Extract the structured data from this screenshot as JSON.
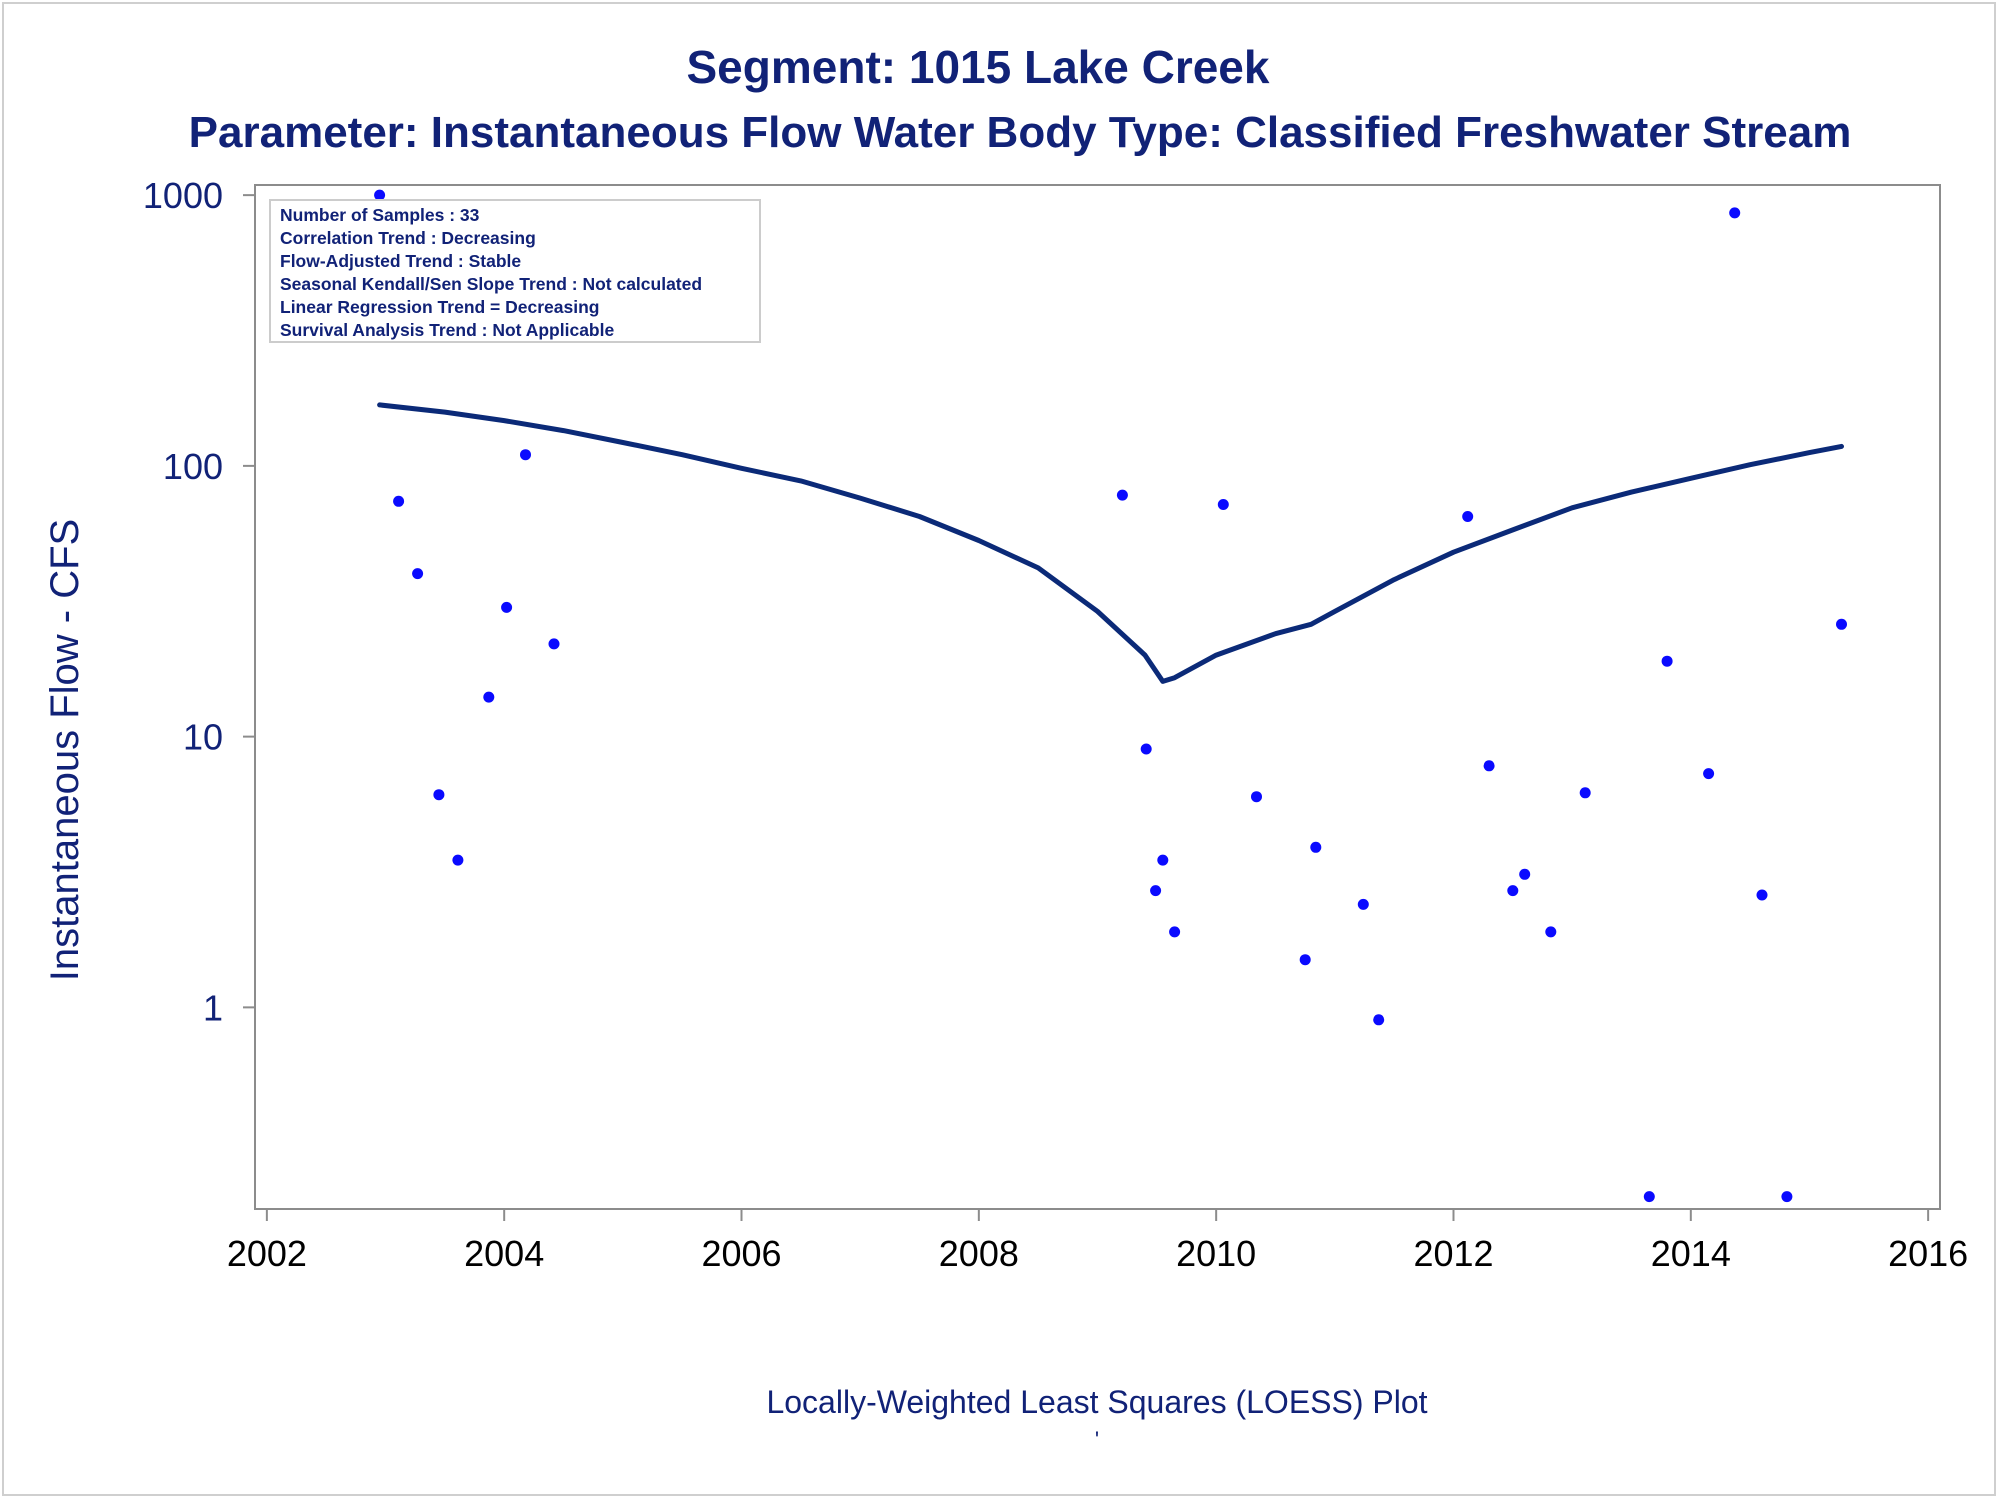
{
  "title": "Segment: 1015  Lake Creek",
  "subtitle": "Parameter: Instantaneous Flow   Water Body Type: Classified Freshwater Stream",
  "stats_box": [
    "Number of Samples : 33",
    "Correlation Trend : Decreasing",
    "Flow-Adjusted Trend : Stable",
    "Seasonal Kendall/Sen Slope Trend : Not calculated",
    "Linear Regression Trend = Decreasing",
    "Survival Analysis Trend : Not Applicable"
  ],
  "footnote": "Locally-Weighted Least Squares (LOESS) Plot",
  "tick_mark": "'",
  "colors": {
    "text": "#112277",
    "loess_line": "#0b2a78",
    "points": "#0a0aff",
    "axis": "#8c8c8c"
  },
  "chart_data": {
    "type": "scatter",
    "title": "Segment: 1015  Lake Creek",
    "subtitle": "Parameter: Instantaneous Flow   Water Body Type: Classified Freshwater Stream",
    "xlabel": "",
    "ylabel": "Instantaneous Flow - CFS",
    "xscale": "linear",
    "yscale": "log",
    "xlim": [
      2001.9,
      2016.1
    ],
    "ylim": [
      0.18,
      1090
    ],
    "xticks": [
      2002,
      2004,
      2006,
      2008,
      2010,
      2012,
      2014,
      2016
    ],
    "xtick_labels": [
      "2002",
      "2004",
      "2006",
      "2008",
      "2010",
      "2012",
      "2014",
      "2016"
    ],
    "yticks": [
      1,
      10,
      100,
      1000
    ],
    "ytick_labels": [
      "1",
      "10",
      "100",
      "1000"
    ],
    "grid": false,
    "legend": "none",
    "series": [
      {
        "type": "scatter",
        "x": [
          2002.95,
          2003.11,
          2003.27,
          2003.45,
          2003.61,
          2003.87,
          2004.02,
          2004.18,
          2004.42,
          2009.21,
          2009.41,
          2009.49,
          2009.55,
          2009.65,
          2010.06,
          2010.34,
          2010.75,
          2010.84,
          2011.24,
          2011.37,
          2012.12,
          2012.3,
          2012.5,
          2012.6,
          2012.82,
          2013.11,
          2013.65,
          2013.8,
          2014.15,
          2014.37,
          2014.6,
          2014.81,
          2015.27
        ],
        "y": [
          1000,
          74,
          40,
          6.1,
          3.5,
          14,
          30,
          110,
          22,
          78,
          9,
          2.7,
          3.5,
          1.9,
          72,
          6,
          1.5,
          3.9,
          2.4,
          0.9,
          65,
          7.8,
          2.7,
          3.1,
          1.9,
          6.2,
          0.2,
          19,
          7.3,
          860,
          2.6,
          0.2,
          26
        ]
      },
      {
        "type": "line",
        "x": [
          2002.95,
          2003.5,
          2004.0,
          2004.5,
          2005.0,
          2005.5,
          2006.0,
          2006.5,
          2007.0,
          2007.5,
          2008.0,
          2008.5,
          2009.0,
          2009.4,
          2009.55,
          2009.65,
          2010.0,
          2010.5,
          2010.8,
          2011.0,
          2011.5,
          2012.0,
          2012.5,
          2013.0,
          2013.5,
          2014.0,
          2014.5,
          2015.0,
          2015.27
        ],
        "y": [
          168,
          158,
          147,
          135,
          122,
          110,
          98,
          88,
          76,
          65,
          53,
          42,
          29,
          20,
          16,
          16.5,
          20,
          24,
          26,
          29,
          38,
          48,
          58,
          70,
          80,
          90,
          101,
          112,
          118
        ]
      }
    ]
  }
}
